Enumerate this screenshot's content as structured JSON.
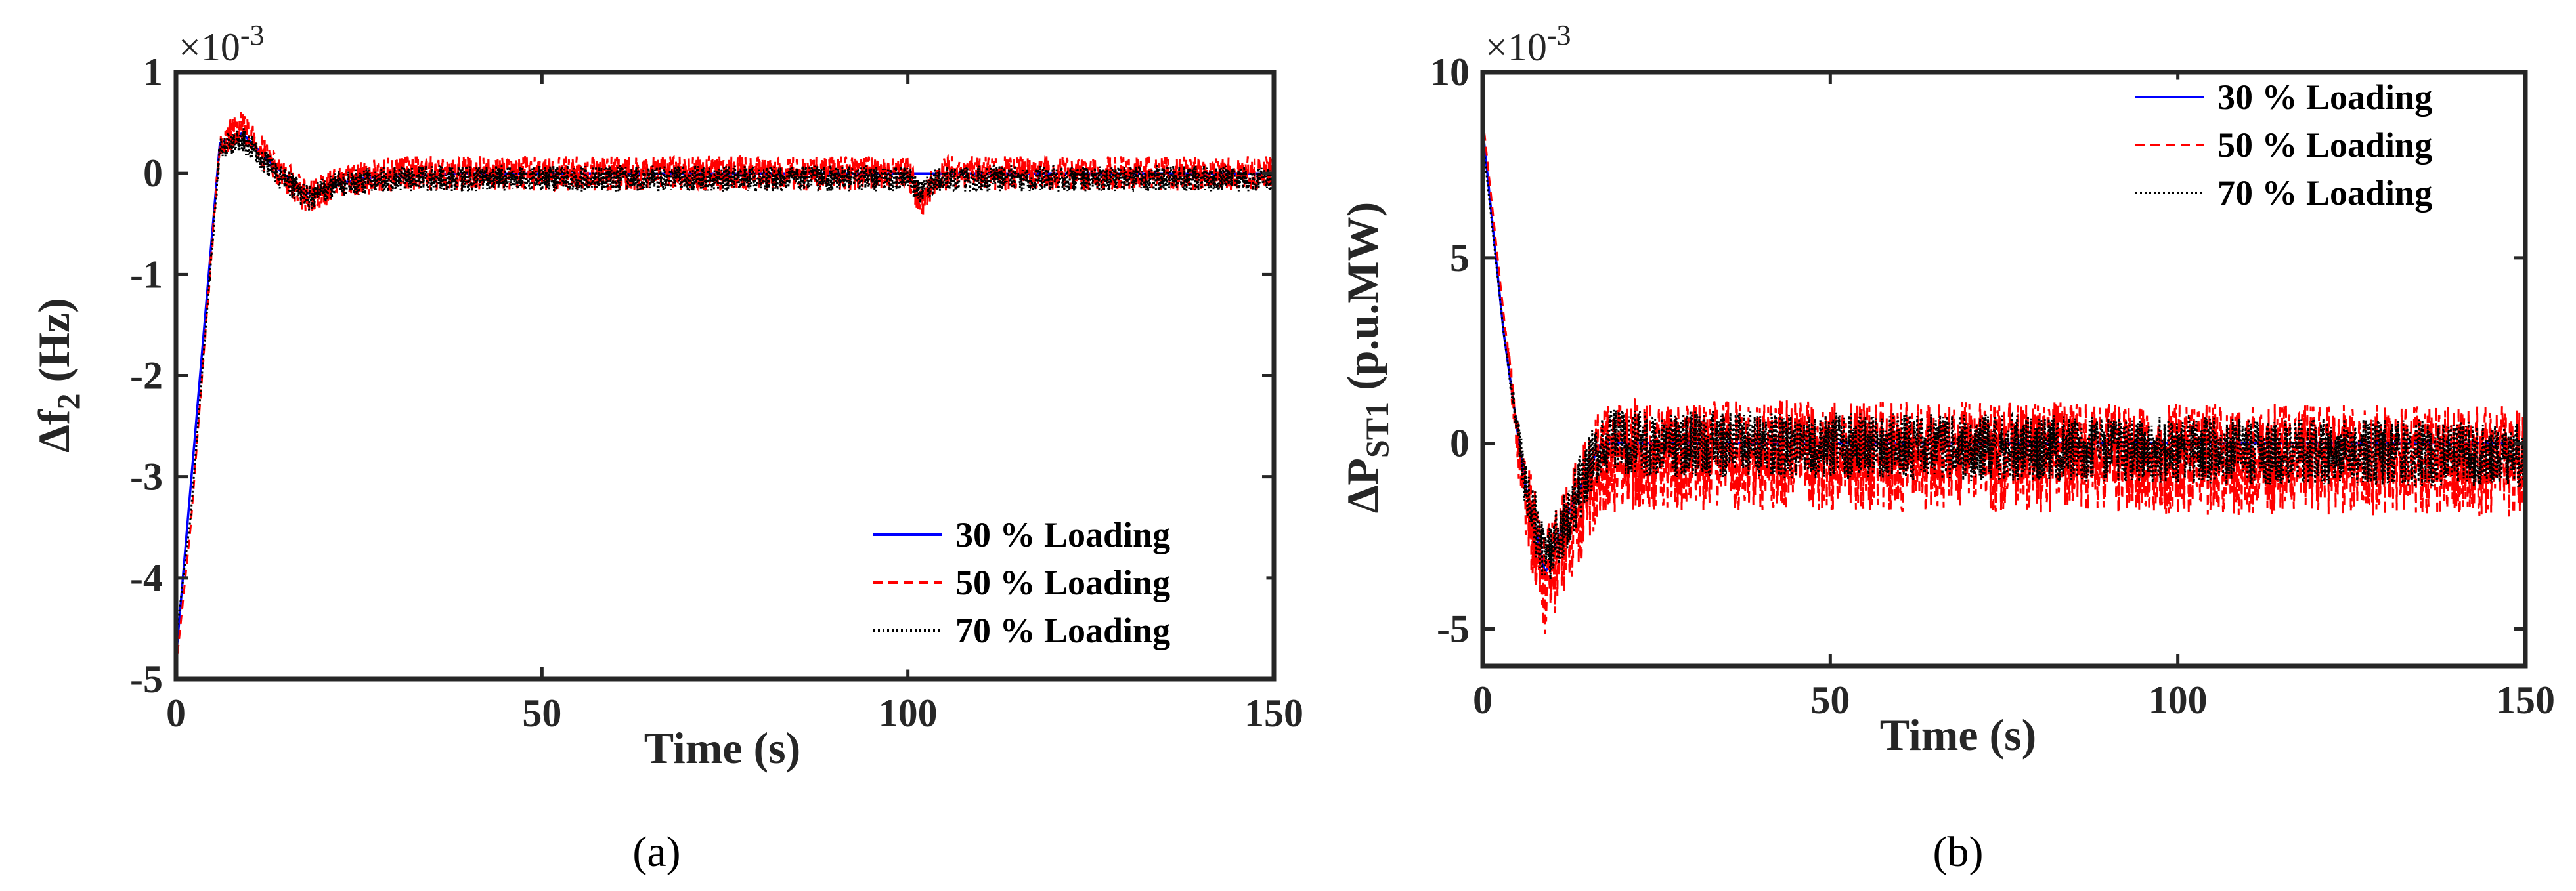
{
  "colors": {
    "axis": "#262626",
    "series_30": "#0000ff",
    "series_50": "#ff0000",
    "series_70": "#000000"
  },
  "chart_data": [
    {
      "type": "line",
      "panel_label": "(a)",
      "xlabel": "Time (s)",
      "ylabel_main": "Δf",
      "ylabel_sub": "2",
      "ylabel_unit": " (Hz)",
      "exponent_label": "×10",
      "exponent_power": "-3",
      "xlim": [
        0,
        150
      ],
      "ylim": [
        -5,
        1
      ],
      "xticks": [
        0,
        50,
        100,
        150
      ],
      "xtick_labels": [
        "0",
        "50",
        "100",
        "150"
      ],
      "yticks": [
        -5,
        -4,
        -3,
        -2,
        -1,
        0,
        1
      ],
      "ytick_labels": [
        "-5",
        "-4",
        "-3",
        "-2",
        "-1",
        "0",
        "1"
      ],
      "legend_position": "bottom-right",
      "series": [
        {
          "name": "30 % Loading",
          "color": "#0000ff",
          "style": "solid",
          "noise": 0,
          "values": [
            [
              0,
              -4.8
            ],
            [
              6,
              0.3
            ],
            [
              9,
              0.4
            ],
            [
              13,
              0.1
            ],
            [
              18,
              -0.2
            ],
            [
              25,
              -0.05
            ],
            [
              40,
              0
            ],
            [
              100,
              0
            ],
            [
              150,
              0
            ]
          ]
        },
        {
          "name": "50 % Loading",
          "color": "#ff0000",
          "style": "dashed",
          "noise": 0.17,
          "values": [
            [
              0,
              -4.9
            ],
            [
              2,
              -3.5
            ],
            [
              6,
              0.3
            ],
            [
              9,
              0.45
            ],
            [
              13,
              0.1
            ],
            [
              18,
              -0.25
            ],
            [
              22,
              -0.1
            ],
            [
              30,
              0
            ],
            [
              100,
              0
            ],
            [
              102,
              -0.3
            ],
            [
              104,
              0
            ],
            [
              150,
              0
            ]
          ]
        },
        {
          "name": "70 % Loading",
          "color": "#000000",
          "style": "dotted",
          "noise": 0.13,
          "values": [
            [
              0,
              -4.6
            ],
            [
              2,
              -3.4
            ],
            [
              6,
              0.25
            ],
            [
              9,
              0.35
            ],
            [
              13,
              0.05
            ],
            [
              18,
              -0.25
            ],
            [
              22,
              -0.1
            ],
            [
              30,
              -0.05
            ],
            [
              100,
              -0.05
            ],
            [
              102,
              -0.2
            ],
            [
              104,
              -0.05
            ],
            [
              150,
              -0.05
            ]
          ]
        }
      ]
    },
    {
      "type": "line",
      "panel_label": "(b)",
      "xlabel": "Time (s)",
      "ylabel_main": "ΔP",
      "ylabel_sub": "ST1",
      "ylabel_unit": " (p.u.MW)",
      "exponent_label": "×10",
      "exponent_power": "-3",
      "xlim": [
        0,
        150
      ],
      "ylim": [
        -6,
        10
      ],
      "xticks": [
        0,
        50,
        100,
        150
      ],
      "xtick_labels": [
        "0",
        "50",
        "100",
        "150"
      ],
      "yticks": [
        -5,
        0,
        5,
        10
      ],
      "ytick_labels": [
        "-5",
        "0",
        "5",
        "10"
      ],
      "legend_position": "top-right",
      "series": [
        {
          "name": "30 % Loading",
          "color": "#0000ff",
          "style": "solid",
          "noise": 0,
          "values": [
            [
              0,
              8.5
            ],
            [
              3,
              3
            ],
            [
              6,
              -1
            ],
            [
              9,
              -3.5
            ],
            [
              12,
              -2
            ],
            [
              17,
              0
            ],
            [
              30,
              0
            ],
            [
              150,
              0
            ]
          ]
        },
        {
          "name": "50 % Loading",
          "color": "#ff0000",
          "style": "dashed",
          "noise": 1.5,
          "values": [
            [
              0,
              8.8
            ],
            [
              3,
              3.5
            ],
            [
              6,
              -1.5
            ],
            [
              9,
              -3.8
            ],
            [
              12,
              -2.5
            ],
            [
              17,
              -0.5
            ],
            [
              22,
              -0.3
            ],
            [
              150,
              -0.5
            ]
          ]
        },
        {
          "name": "70 % Loading",
          "color": "#000000",
          "style": "dotted",
          "noise": 0.9,
          "values": [
            [
              0,
              8.2
            ],
            [
              3,
              3
            ],
            [
              6,
              -1
            ],
            [
              9,
              -3.2
            ],
            [
              12,
              -2
            ],
            [
              17,
              0
            ],
            [
              22,
              0
            ],
            [
              150,
              -0.3
            ]
          ]
        }
      ]
    }
  ]
}
